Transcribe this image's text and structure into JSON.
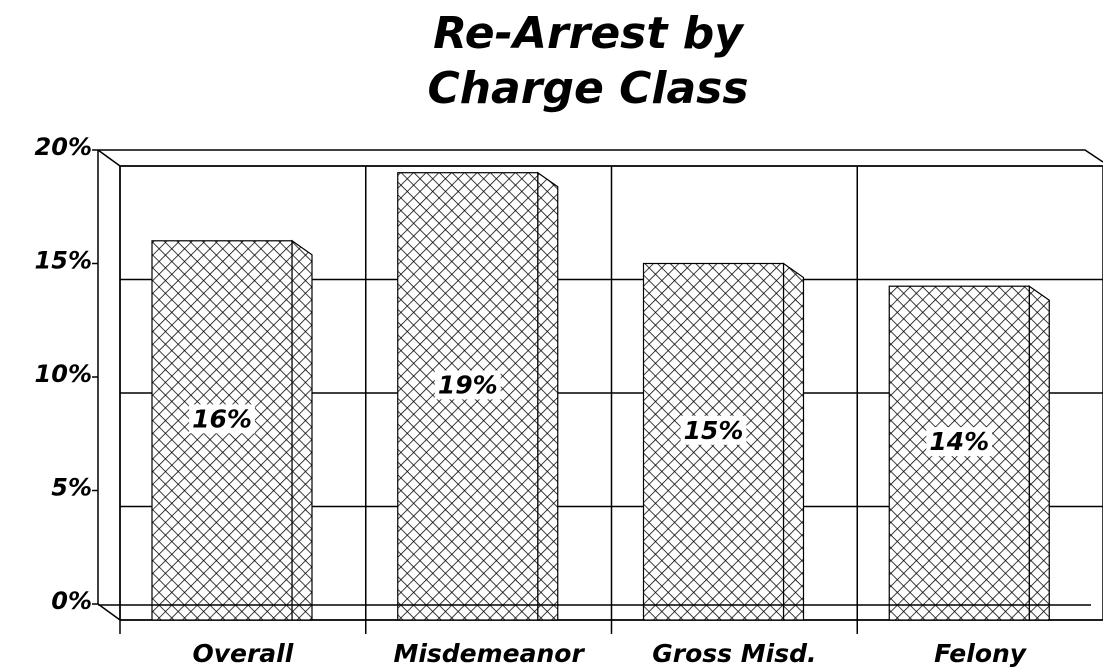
{
  "chart_data": {
    "type": "bar",
    "title": [
      "Re-Arrest by",
      "Charge Class"
    ],
    "categories": [
      "Overall",
      "Misdemeanor",
      "Gross Misd.",
      "Felony"
    ],
    "values": [
      16,
      19,
      15,
      14
    ],
    "value_labels": [
      "16%",
      "19%",
      "15%",
      "14%"
    ],
    "color": "#2b3fe0",
    "ylim": [
      0,
      20
    ],
    "yticks": [
      {
        "value": 0,
        "label": "0%"
      },
      {
        "value": 5,
        "label": "5%"
      },
      {
        "value": 10,
        "label": "10%"
      },
      {
        "value": 15,
        "label": "15%"
      },
      {
        "value": 20,
        "label": "20%"
      }
    ],
    "grid": true
  }
}
